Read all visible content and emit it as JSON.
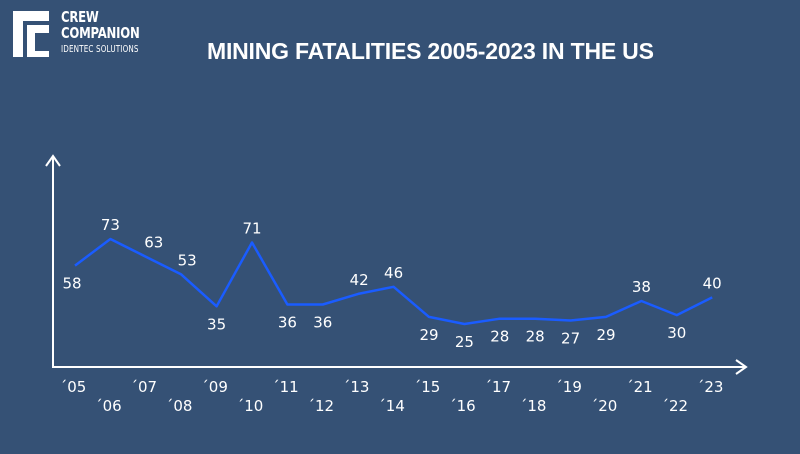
{
  "brand": {
    "line1": "CREW",
    "line2": "COMPANION",
    "line3": "IDENTEC SOLUTIONS",
    "logo_icon": "crew-companion-logo-icon"
  },
  "title": "MINING FATALITIES 2005-2023 IN THE US",
  "colors": {
    "background": "#355175",
    "line": "#1a5cff",
    "axis": "#ffffff",
    "text": "#ffffff"
  },
  "chart_data": {
    "type": "line",
    "title": "MINING FATALITIES 2005-2023 IN THE US",
    "xlabel": "",
    "ylabel": "",
    "categories": [
      "´05",
      "´06",
      "´07",
      "´08",
      "´09",
      "´10",
      "´11",
      "´12",
      "´13",
      "´14",
      "´15",
      "´16",
      "´17",
      "´18",
      "´19",
      "´20",
      "´21",
      "´22",
      "´23"
    ],
    "x": [
      2005,
      2006,
      2007,
      2008,
      2009,
      2010,
      2011,
      2012,
      2013,
      2014,
      2015,
      2016,
      2017,
      2018,
      2019,
      2020,
      2021,
      2022,
      2023
    ],
    "values": [
      58,
      73,
      63,
      53,
      35,
      71,
      36,
      36,
      42,
      46,
      29,
      25,
      28,
      28,
      27,
      29,
      38,
      30,
      40
    ],
    "data_labels": true,
    "grid": false,
    "legend": "none",
    "axes": "arrows, no numeric y ticks"
  }
}
